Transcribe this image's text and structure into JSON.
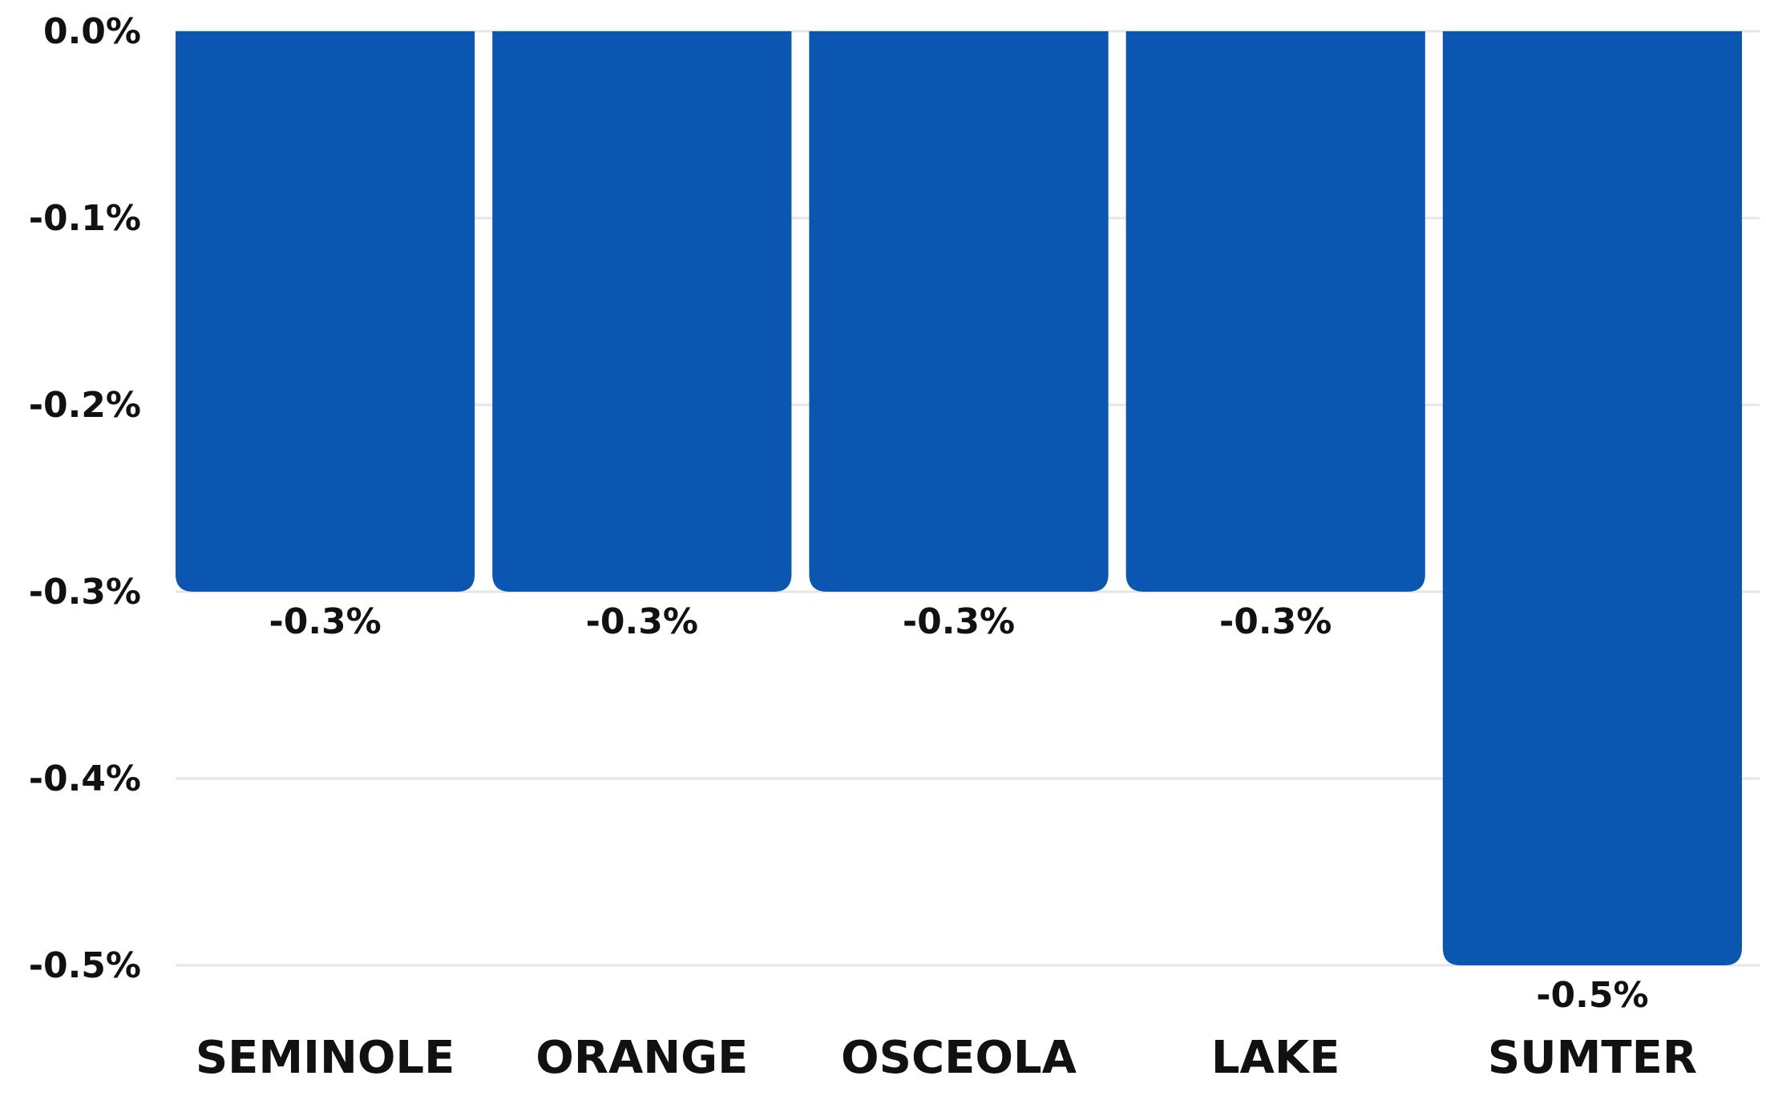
{
  "chart_data": {
    "type": "bar",
    "title": "",
    "xlabel": "",
    "ylabel": "",
    "categories": [
      "SEMINOLE",
      "ORANGE",
      "OSCEOLA",
      "LAKE",
      "SUMTER"
    ],
    "values": [
      -0.3,
      -0.3,
      -0.3,
      -0.3,
      -0.5
    ],
    "data_labels": [
      "-0.3%",
      "-0.3%",
      "-0.3%",
      "-0.3%",
      "-0.5%"
    ],
    "ylim": [
      -0.5,
      0.0
    ],
    "y_ticks": [
      0.0,
      -0.1,
      -0.2,
      -0.3,
      -0.4,
      -0.5
    ],
    "y_tick_labels": [
      "0.0%",
      "-0.1%",
      "-0.2%",
      "-0.3%",
      "-0.4%",
      "-0.5%"
    ],
    "grid": true,
    "legend": "none",
    "colors": {
      "bar": "#0a56b1",
      "grid": "#e6e6e6",
      "text": "#111111"
    }
  }
}
